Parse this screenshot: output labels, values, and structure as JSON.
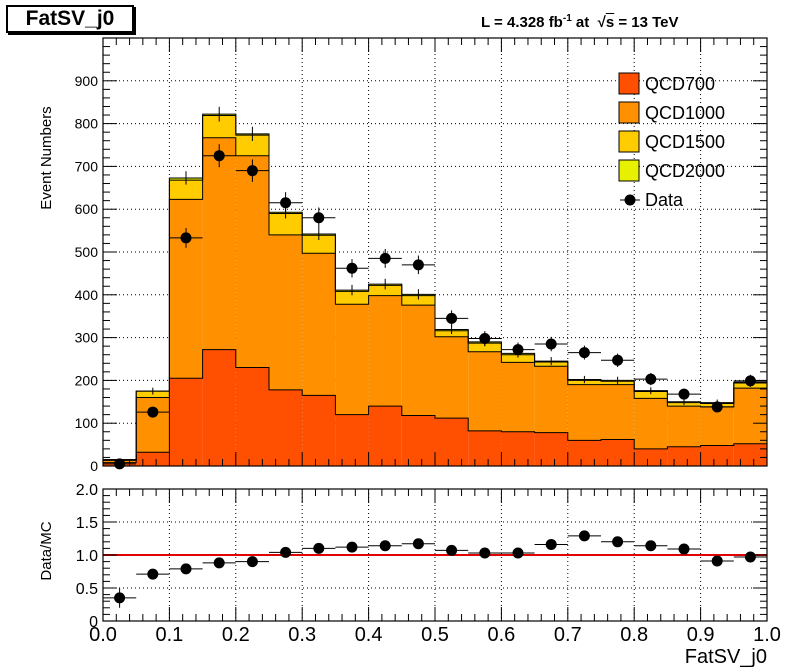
{
  "hist_title": "FatSV_j0",
  "lumi": {
    "prefix": "L = 4.328 fb",
    "exponent": "-1",
    "middle": " at  ",
    "root": "√",
    "s": "s",
    "suffix": " = 13 TeV"
  },
  "colors": {
    "QCD700": "#ff4f00",
    "QCD1000": "#ff9000",
    "QCD1500": "#ffcc00",
    "QCD2000": "#e6f000",
    "data": "#000000",
    "ratio_line": "#e00000"
  },
  "chart_data": [
    {
      "type": "area",
      "subtype": "stacked-histogram",
      "xlabel": "",
      "ylabel": "Event Numbers",
      "xlim": [
        0.0,
        1.0
      ],
      "ylim": [
        0,
        1000
      ],
      "grid": true,
      "legend_position": "top-right",
      "bin_edges": [
        0.0,
        0.05,
        0.1,
        0.15,
        0.2,
        0.25,
        0.3,
        0.35,
        0.4,
        0.45,
        0.5,
        0.55,
        0.6,
        0.65,
        0.7,
        0.75,
        0.8,
        0.85,
        0.9,
        0.95,
        1.0
      ],
      "yticks": [
        0,
        100,
        200,
        300,
        400,
        500,
        600,
        700,
        800,
        900
      ],
      "series": [
        {
          "name": "QCD700",
          "values": [
            8,
            32,
            205,
            272,
            230,
            178,
            165,
            120,
            140,
            118,
            112,
            82,
            80,
            78,
            60,
            62,
            40,
            45,
            48,
            52
          ]
        },
        {
          "name": "QCD1000",
          "values": [
            5,
            128,
            418,
            495,
            495,
            362,
            332,
            258,
            258,
            258,
            190,
            185,
            162,
            155,
            130,
            128,
            118,
            95,
            90,
            130
          ]
        },
        {
          "name": "QCD1500",
          "values": [
            2,
            15,
            45,
            52,
            48,
            50,
            42,
            30,
            24,
            22,
            14,
            20,
            18,
            10,
            10,
            8,
            16,
            8,
            8,
            12
          ]
        },
        {
          "name": "QCD2000",
          "values": [
            0,
            0,
            5,
            3,
            3,
            3,
            3,
            3,
            3,
            3,
            3,
            3,
            3,
            2,
            2,
            2,
            2,
            2,
            2,
            2
          ]
        },
        {
          "name": "Data",
          "values": [
            5,
            126,
            533,
            725,
            690,
            615,
            580,
            462,
            485,
            470,
            345,
            298,
            272,
            285,
            265,
            247,
            203,
            168,
            138,
            199
          ]
        }
      ]
    },
    {
      "type": "scatter",
      "xlabel": "FatSV_j0",
      "ylabel": "Data/MC",
      "xlim": [
        0.0,
        1.0
      ],
      "ylim": [
        0.0,
        2.0
      ],
      "grid": true,
      "reference_line": 1.0,
      "yticks": [
        "0",
        "0.5",
        "1.0",
        "1.5",
        "2.0"
      ],
      "xticks": [
        "0.0",
        "0.1",
        "0.2",
        "0.3",
        "0.4",
        "0.5",
        "0.6",
        "0.7",
        "0.8",
        "0.9",
        "1.0"
      ],
      "x": [
        0.025,
        0.075,
        0.125,
        0.175,
        0.225,
        0.275,
        0.325,
        0.375,
        0.425,
        0.475,
        0.525,
        0.575,
        0.625,
        0.675,
        0.725,
        0.775,
        0.825,
        0.875,
        0.925,
        0.975
      ],
      "values": [
        0.35,
        0.71,
        0.79,
        0.88,
        0.9,
        1.04,
        1.1,
        1.12,
        1.14,
        1.17,
        1.07,
        1.03,
        1.03,
        1.16,
        1.29,
        1.2,
        1.14,
        1.09,
        0.91,
        0.97
      ]
    }
  ]
}
